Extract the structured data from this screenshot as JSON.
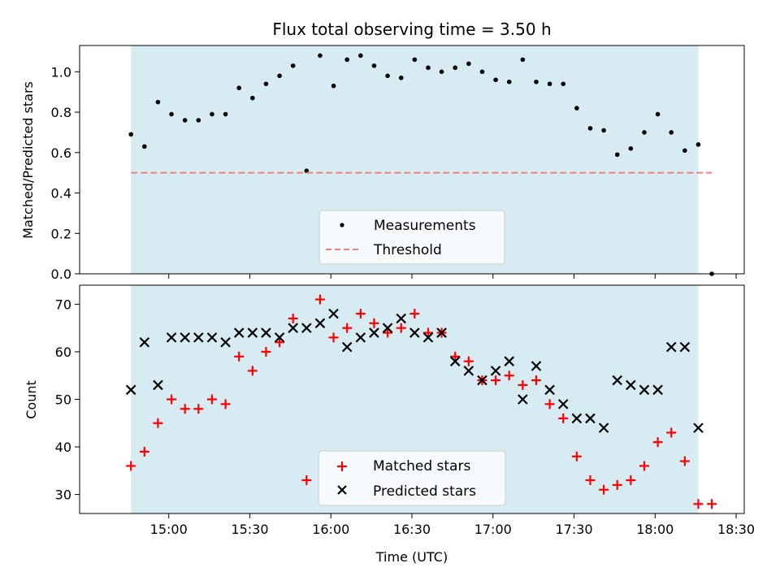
{
  "chart_data": [
    {
      "type": "scatter",
      "title": "Flux total observing time = 3.50 h",
      "xlabel": "",
      "ylabel": "Matched/Predicted stars",
      "ylim": [
        0,
        1.13
      ],
      "yticks": [
        "0.0",
        "0.2",
        "0.4",
        "0.6",
        "0.8",
        "1.0"
      ],
      "shaded_interval": [
        "14:46",
        "18:16"
      ],
      "shade_color": "#add8e6",
      "legend_position": "bottom-center",
      "series": [
        {
          "name": "Measurements",
          "color": "#000000",
          "marker": "dot",
          "x": [
            "14:46",
            "14:51",
            "14:56",
            "15:01",
            "15:06",
            "15:11",
            "15:16",
            "15:21",
            "15:26",
            "15:31",
            "15:36",
            "15:41",
            "15:46",
            "15:51",
            "15:56",
            "16:01",
            "16:06",
            "16:11",
            "16:16",
            "16:21",
            "16:26",
            "16:31",
            "16:36",
            "16:41",
            "16:46",
            "16:51",
            "16:56",
            "17:01",
            "17:06",
            "17:11",
            "17:16",
            "17:21",
            "17:26",
            "17:31",
            "17:36",
            "17:41",
            "17:46",
            "17:51",
            "17:56",
            "18:01",
            "18:06",
            "18:11",
            "18:16",
            "18:21"
          ],
          "y": [
            0.69,
            0.63,
            0.85,
            0.79,
            0.76,
            0.76,
            0.79,
            0.79,
            0.92,
            0.87,
            0.94,
            0.98,
            1.03,
            0.51,
            1.08,
            0.93,
            1.06,
            1.08,
            1.03,
            0.98,
            0.97,
            1.06,
            1.02,
            1.0,
            1.02,
            1.04,
            1.0,
            0.96,
            0.95,
            1.06,
            0.95,
            0.94,
            0.94,
            0.82,
            0.72,
            0.71,
            0.59,
            0.62,
            0.7,
            0.79,
            0.7,
            0.61,
            0.64,
            0.0
          ]
        },
        {
          "name": "Threshold",
          "color": "#f08080",
          "style": "dashed",
          "x": [
            "14:46",
            "18:21"
          ],
          "y": [
            0.5,
            0.5
          ]
        }
      ]
    },
    {
      "type": "scatter",
      "title": "",
      "xlabel": "Time (UTC)",
      "ylabel": "Count",
      "ylim": [
        26,
        74
      ],
      "yticks": [
        "30",
        "40",
        "50",
        "60",
        "70"
      ],
      "xticks": [
        "15:00",
        "15:30",
        "16:00",
        "16:30",
        "17:00",
        "17:30",
        "18:00",
        "18:30"
      ],
      "shaded_interval": [
        "14:46",
        "18:16"
      ],
      "shade_color": "#add8e6",
      "legend_position": "bottom-center",
      "series": [
        {
          "name": "Matched stars",
          "color": "#ff0000",
          "marker": "plus",
          "x": [
            "14:46",
            "14:51",
            "14:56",
            "15:01",
            "15:06",
            "15:11",
            "15:16",
            "15:21",
            "15:26",
            "15:31",
            "15:36",
            "15:41",
            "15:46",
            "15:51",
            "15:56",
            "16:01",
            "16:06",
            "16:11",
            "16:16",
            "16:21",
            "16:26",
            "16:31",
            "16:36",
            "16:41",
            "16:46",
            "16:51",
            "16:56",
            "17:01",
            "17:06",
            "17:11",
            "17:16",
            "17:21",
            "17:26",
            "17:31",
            "17:36",
            "17:41",
            "17:46",
            "17:51",
            "17:56",
            "18:01",
            "18:06",
            "18:11",
            "18:16",
            "18:21"
          ],
          "y": [
            36,
            39,
            45,
            50,
            48,
            48,
            50,
            49,
            59,
            56,
            60,
            62,
            67,
            33,
            71,
            63,
            65,
            68,
            66,
            64,
            65,
            68,
            64,
            64,
            59,
            58,
            54,
            54,
            55,
            53,
            54,
            49,
            46,
            38,
            33,
            31,
            32,
            33,
            36,
            41,
            43,
            37,
            28,
            28
          ]
        },
        {
          "name": "Predicted stars",
          "color": "#000000",
          "marker": "x",
          "x": [
            "14:46",
            "14:51",
            "14:56",
            "15:01",
            "15:06",
            "15:11",
            "15:16",
            "15:21",
            "15:26",
            "15:31",
            "15:36",
            "15:41",
            "15:46",
            "15:51",
            "15:56",
            "16:01",
            "16:06",
            "16:11",
            "16:16",
            "16:21",
            "16:26",
            "16:31",
            "16:36",
            "16:41",
            "16:46",
            "16:51",
            "16:56",
            "17:01",
            "17:06",
            "17:11",
            "17:16",
            "17:21",
            "17:26",
            "17:31",
            "17:36",
            "17:41",
            "17:46",
            "17:51",
            "17:56",
            "18:01",
            "18:06",
            "18:11",
            "18:16"
          ],
          "y": [
            52,
            62,
            53,
            63,
            63,
            63,
            63,
            62,
            64,
            64,
            64,
            63,
            65,
            65,
            66,
            68,
            61,
            63,
            64,
            65,
            67,
            64,
            63,
            64,
            58,
            56,
            54,
            56,
            58,
            50,
            57,
            52,
            49,
            46,
            46,
            44,
            54,
            53,
            52,
            52,
            61,
            61,
            44
          ]
        }
      ]
    }
  ]
}
